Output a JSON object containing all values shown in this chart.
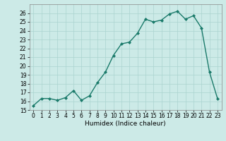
{
  "x": [
    0,
    1,
    2,
    3,
    4,
    5,
    6,
    7,
    8,
    9,
    10,
    11,
    12,
    13,
    14,
    15,
    16,
    17,
    18,
    19,
    20,
    21,
    22,
    23
  ],
  "y": [
    15.5,
    16.3,
    16.3,
    16.1,
    16.4,
    17.2,
    16.1,
    16.6,
    18.1,
    19.3,
    21.2,
    22.5,
    22.7,
    23.7,
    25.3,
    25.0,
    25.2,
    25.9,
    26.2,
    25.3,
    25.7,
    24.3,
    19.3,
    16.3
  ],
  "line_color": "#1a7a6a",
  "marker": "D",
  "marker_size": 2.0,
  "bg_color": "#cceae7",
  "grid_color": "#aad4d0",
  "xlabel": "Humidex (Indice chaleur)",
  "ylim": [
    15,
    27
  ],
  "xlim": [
    -0.5,
    23.5
  ],
  "yticks": [
    15,
    16,
    17,
    18,
    19,
    20,
    21,
    22,
    23,
    24,
    25,
    26
  ],
  "xticks": [
    0,
    1,
    2,
    3,
    4,
    5,
    6,
    7,
    8,
    9,
    10,
    11,
    12,
    13,
    14,
    15,
    16,
    17,
    18,
    19,
    20,
    21,
    22,
    23
  ],
  "tick_fontsize": 5.5,
  "xlabel_fontsize": 6.5,
  "line_width": 1.0
}
